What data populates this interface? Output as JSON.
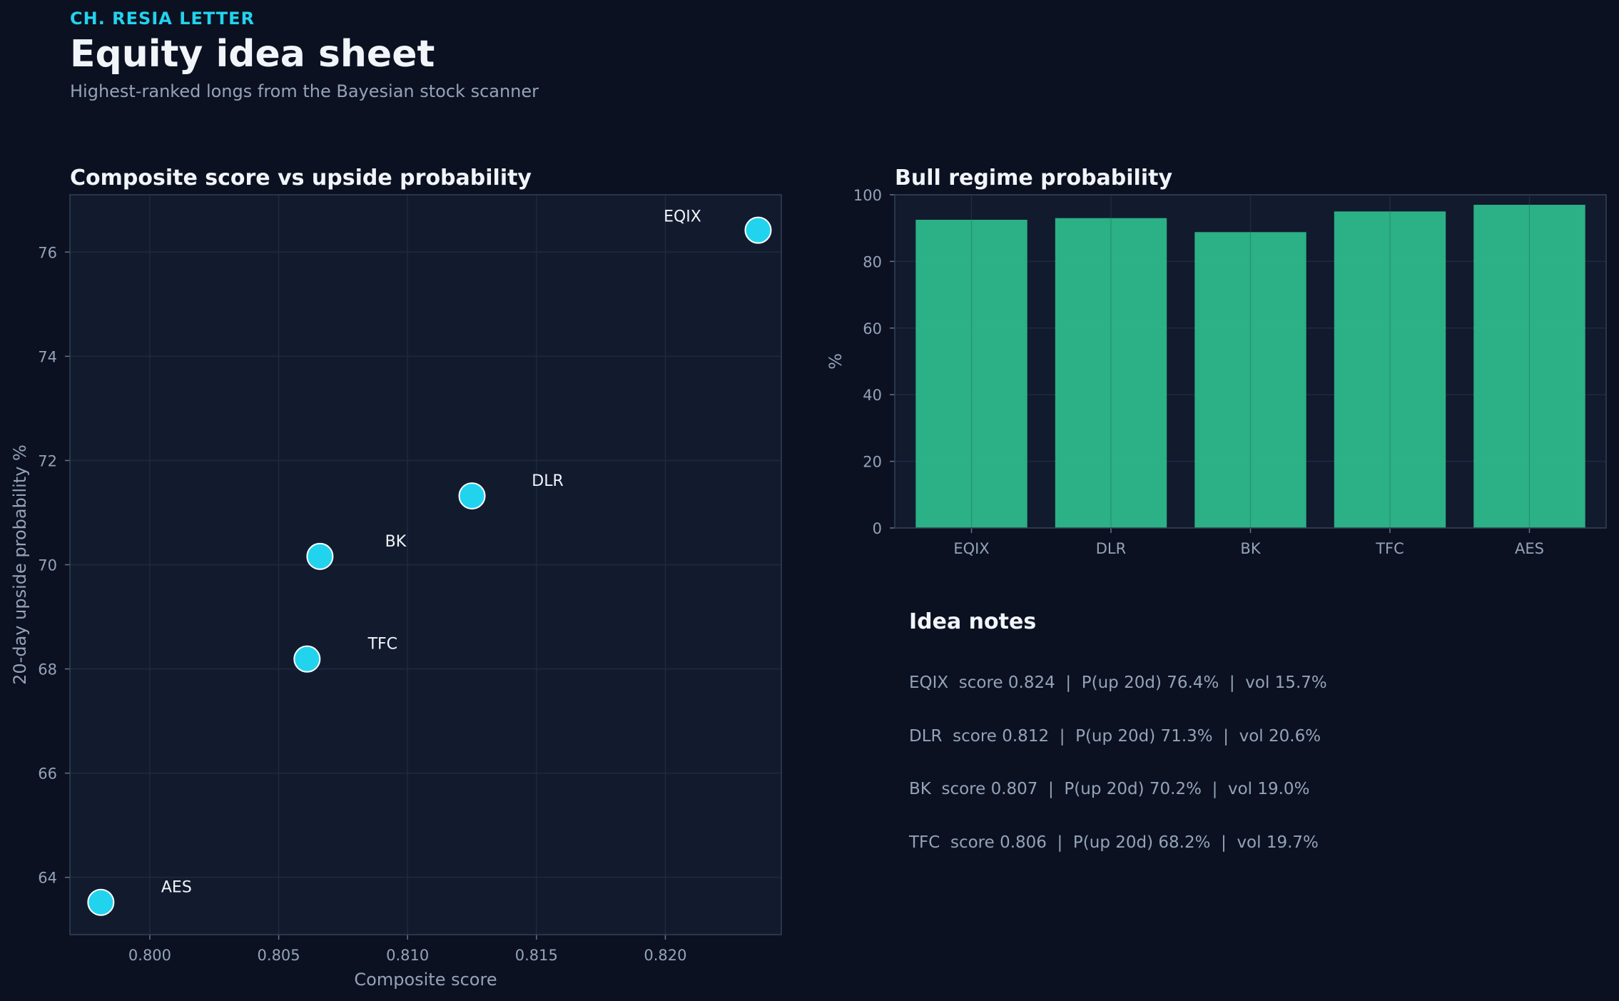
{
  "header": {
    "kicker": "CH. RESIA LETTER",
    "title": "Equity idea sheet",
    "subtitle": "Highest-ranked longs from the Bayesian stock scanner"
  },
  "colors": {
    "background": "#0b1121",
    "panel": "#121a2e",
    "accent": "#22d3ee",
    "bar": "#2eb88a",
    "grid": "#1e2a42",
    "muted_text": "#94a3b8",
    "text": "#f1f5f9"
  },
  "chart_data": [
    {
      "type": "scatter",
      "title": "Composite score vs upside probability",
      "xlabel": "Composite score",
      "ylabel": "20-day upside probability %",
      "xlim": [
        0.7969,
        0.8245
      ],
      "ylim": [
        62.9,
        77.1
      ],
      "xticks": [
        0.8,
        0.805,
        0.81,
        0.815,
        0.82
      ],
      "xtick_labels": [
        "0.800",
        "0.805",
        "0.810",
        "0.815",
        "0.820"
      ],
      "yticks": [
        64,
        66,
        68,
        70,
        72,
        74,
        76
      ],
      "ytick_labels": [
        "64",
        "66",
        "68",
        "70",
        "72",
        "74",
        "76"
      ],
      "grid": true,
      "points": [
        {
          "label": "EQIX",
          "x": 0.8236,
          "y": 76.42
        },
        {
          "label": "DLR",
          "x": 0.8125,
          "y": 71.32
        },
        {
          "label": "BK",
          "x": 0.8066,
          "y": 70.16
        },
        {
          "label": "TFC",
          "x": 0.8061,
          "y": 68.19
        },
        {
          "label": "AES",
          "x": 0.7981,
          "y": 63.52
        }
      ]
    },
    {
      "type": "bar",
      "title": "Bull regime probability",
      "xlabel": "",
      "ylabel": "%",
      "ylim": [
        0,
        100
      ],
      "yticks": [
        0,
        20,
        40,
        60,
        80,
        100
      ],
      "ytick_labels": [
        "0",
        "20",
        "40",
        "60",
        "80",
        "100"
      ],
      "grid": true,
      "categories": [
        "EQIX",
        "DLR",
        "BK",
        "TFC",
        "AES"
      ],
      "values": [
        92.5,
        93.0,
        88.8,
        95.0,
        97.0
      ]
    }
  ],
  "notes": {
    "title": "Idea notes",
    "lines": [
      "EQIX  score 0.824  |  P(up 20d) 76.4%  |  vol 15.7%",
      "DLR  score 0.812  |  P(up 20d) 71.3%  |  vol 20.6%",
      "BK  score 0.807  |  P(up 20d) 70.2%  |  vol 19.0%",
      "TFC  score 0.806  |  P(up 20d) 68.2%  |  vol 19.7%"
    ]
  }
}
